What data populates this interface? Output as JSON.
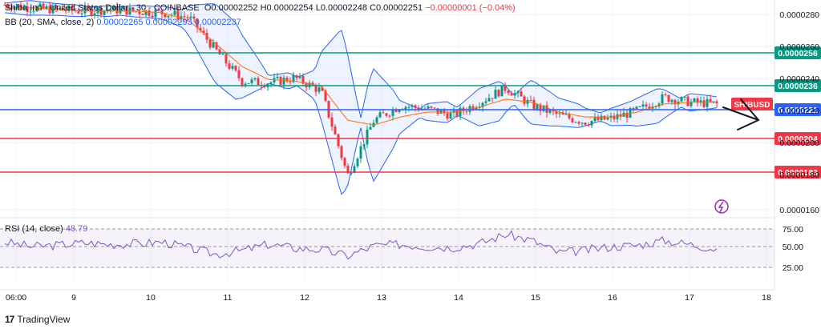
{
  "header": {
    "symbol_line": "Shiba Inu · United States Dollar · 30 · COINBASE",
    "ohlc": {
      "o_label": "O",
      "o": "0.00002252",
      "h_label": "H",
      "h": "0.00002254",
      "l_label": "L",
      "l": "0.00002248",
      "c_label": "C",
      "c": "0.00002251",
      "change": "−0.00000001 (−0.04%)"
    },
    "bb_line": "BB (20, SMA, close, 2)",
    "bb_values": "0.00002265  0.00002293  0.00002237",
    "rsi_line": "RSI (14, close)",
    "rsi_value": "48.79"
  },
  "branding": {
    "name": "TradingView"
  },
  "price_axis": {
    "ticks": [
      {
        "label": "0.0000280"
      },
      {
        "label": "0.0000260"
      },
      {
        "label": "0.0000240"
      },
      {
        "label": "0.0000220"
      },
      {
        "label": "0.0000200"
      },
      {
        "label": "0.0000180"
      },
      {
        "label": "0.0000160"
      }
    ],
    "levels": [
      {
        "label": "0.0000256",
        "color": "#089981",
        "value": 2.56e-05
      },
      {
        "label": "0.0000236",
        "color": "#089981",
        "value": 2.36e-05
      },
      {
        "label": "0.0000221",
        "color": "#2962ff",
        "value": 2.21e-05
      },
      {
        "label": "0.0000204",
        "color": "#f23645",
        "value": 2.04e-05
      },
      {
        "label": "0.0000183",
        "color": "#f23645",
        "value": 1.83e-05
      }
    ],
    "symbol_tag": "SHIBUSD"
  },
  "rsi_axis": {
    "ticks": [
      "75.00",
      "50.00",
      "25.00"
    ]
  },
  "time_axis": {
    "labels": [
      "06:00",
      "9",
      "10",
      "11",
      "12",
      "13",
      "14",
      "15",
      "16",
      "17",
      "18"
    ]
  },
  "chart_data": {
    "type": "line",
    "title": "Shiba Inu / United States Dollar, 30, COINBASE",
    "x_labels": [
      "06:00",
      "9",
      "10",
      "11",
      "12",
      "13",
      "14",
      "15",
      "16",
      "17",
      "18"
    ],
    "ylim": [
      1.55e-05,
      2.9e-05
    ],
    "series": [
      {
        "name": "SHIBUSD close",
        "values": [
          2.86e-05,
          2.84e-05,
          2.83e-05,
          2.82e-05,
          2.83e-05,
          2.82e-05,
          2.81e-05,
          2.78e-05,
          2.58e-05,
          2.39e-05,
          2.38e-05,
          2.41e-05,
          2.33e-05,
          1.81e-05,
          2.15e-05,
          2.24e-05,
          2.22e-05,
          2.18e-05,
          2.26e-05,
          2.35e-05,
          2.24e-05,
          2.18e-05,
          2.14e-05,
          2.16e-05,
          2.21e-05,
          2.29e-05,
          2.26e-05,
          2.25e-05
        ]
      },
      {
        "name": "BB (20, SMA, close, 2)",
        "values": [
          2.84e-05,
          2.84e-05,
          2.83e-05,
          2.82e-05,
          2.82e-05,
          2.82e-05,
          2.81e-05,
          2.76e-05,
          2.62e-05,
          2.48e-05,
          2.4e-05,
          2.39e-05,
          2.36e-05,
          2.15e-05,
          2.12e-05,
          2.17e-05,
          2.2e-05,
          2.2e-05,
          2.23e-05,
          2.28e-05,
          2.26e-05,
          2.2e-05,
          2.17e-05,
          2.17e-05,
          2.2e-05,
          2.25e-05,
          2.26e-05,
          2.26e-05
        ]
      },
      {
        "name": "RSI (14, close)",
        "values": [
          58,
          52,
          54,
          57,
          55,
          56,
          58,
          50,
          42,
          47,
          55,
          50,
          48,
          40,
          53,
          55,
          52,
          51,
          56,
          68,
          60,
          44,
          47,
          52,
          54,
          60,
          55,
          49
        ]
      }
    ],
    "levels": [
      2.56e-05,
      2.36e-05,
      2.21e-05,
      2.04e-05,
      1.83e-05
    ],
    "rsi_bands": [
      75,
      50,
      25
    ]
  },
  "colors": {
    "candle_up": "#089981",
    "candle_down": "#f23645",
    "bb_band": "#2962ff",
    "bb_fill": "#2962ff",
    "basis": "#ff6d00",
    "rsi_line": "#7e57c2",
    "rsi_fill": "#7e57c2",
    "grid": "#f0f3fa",
    "text": "#131722"
  }
}
